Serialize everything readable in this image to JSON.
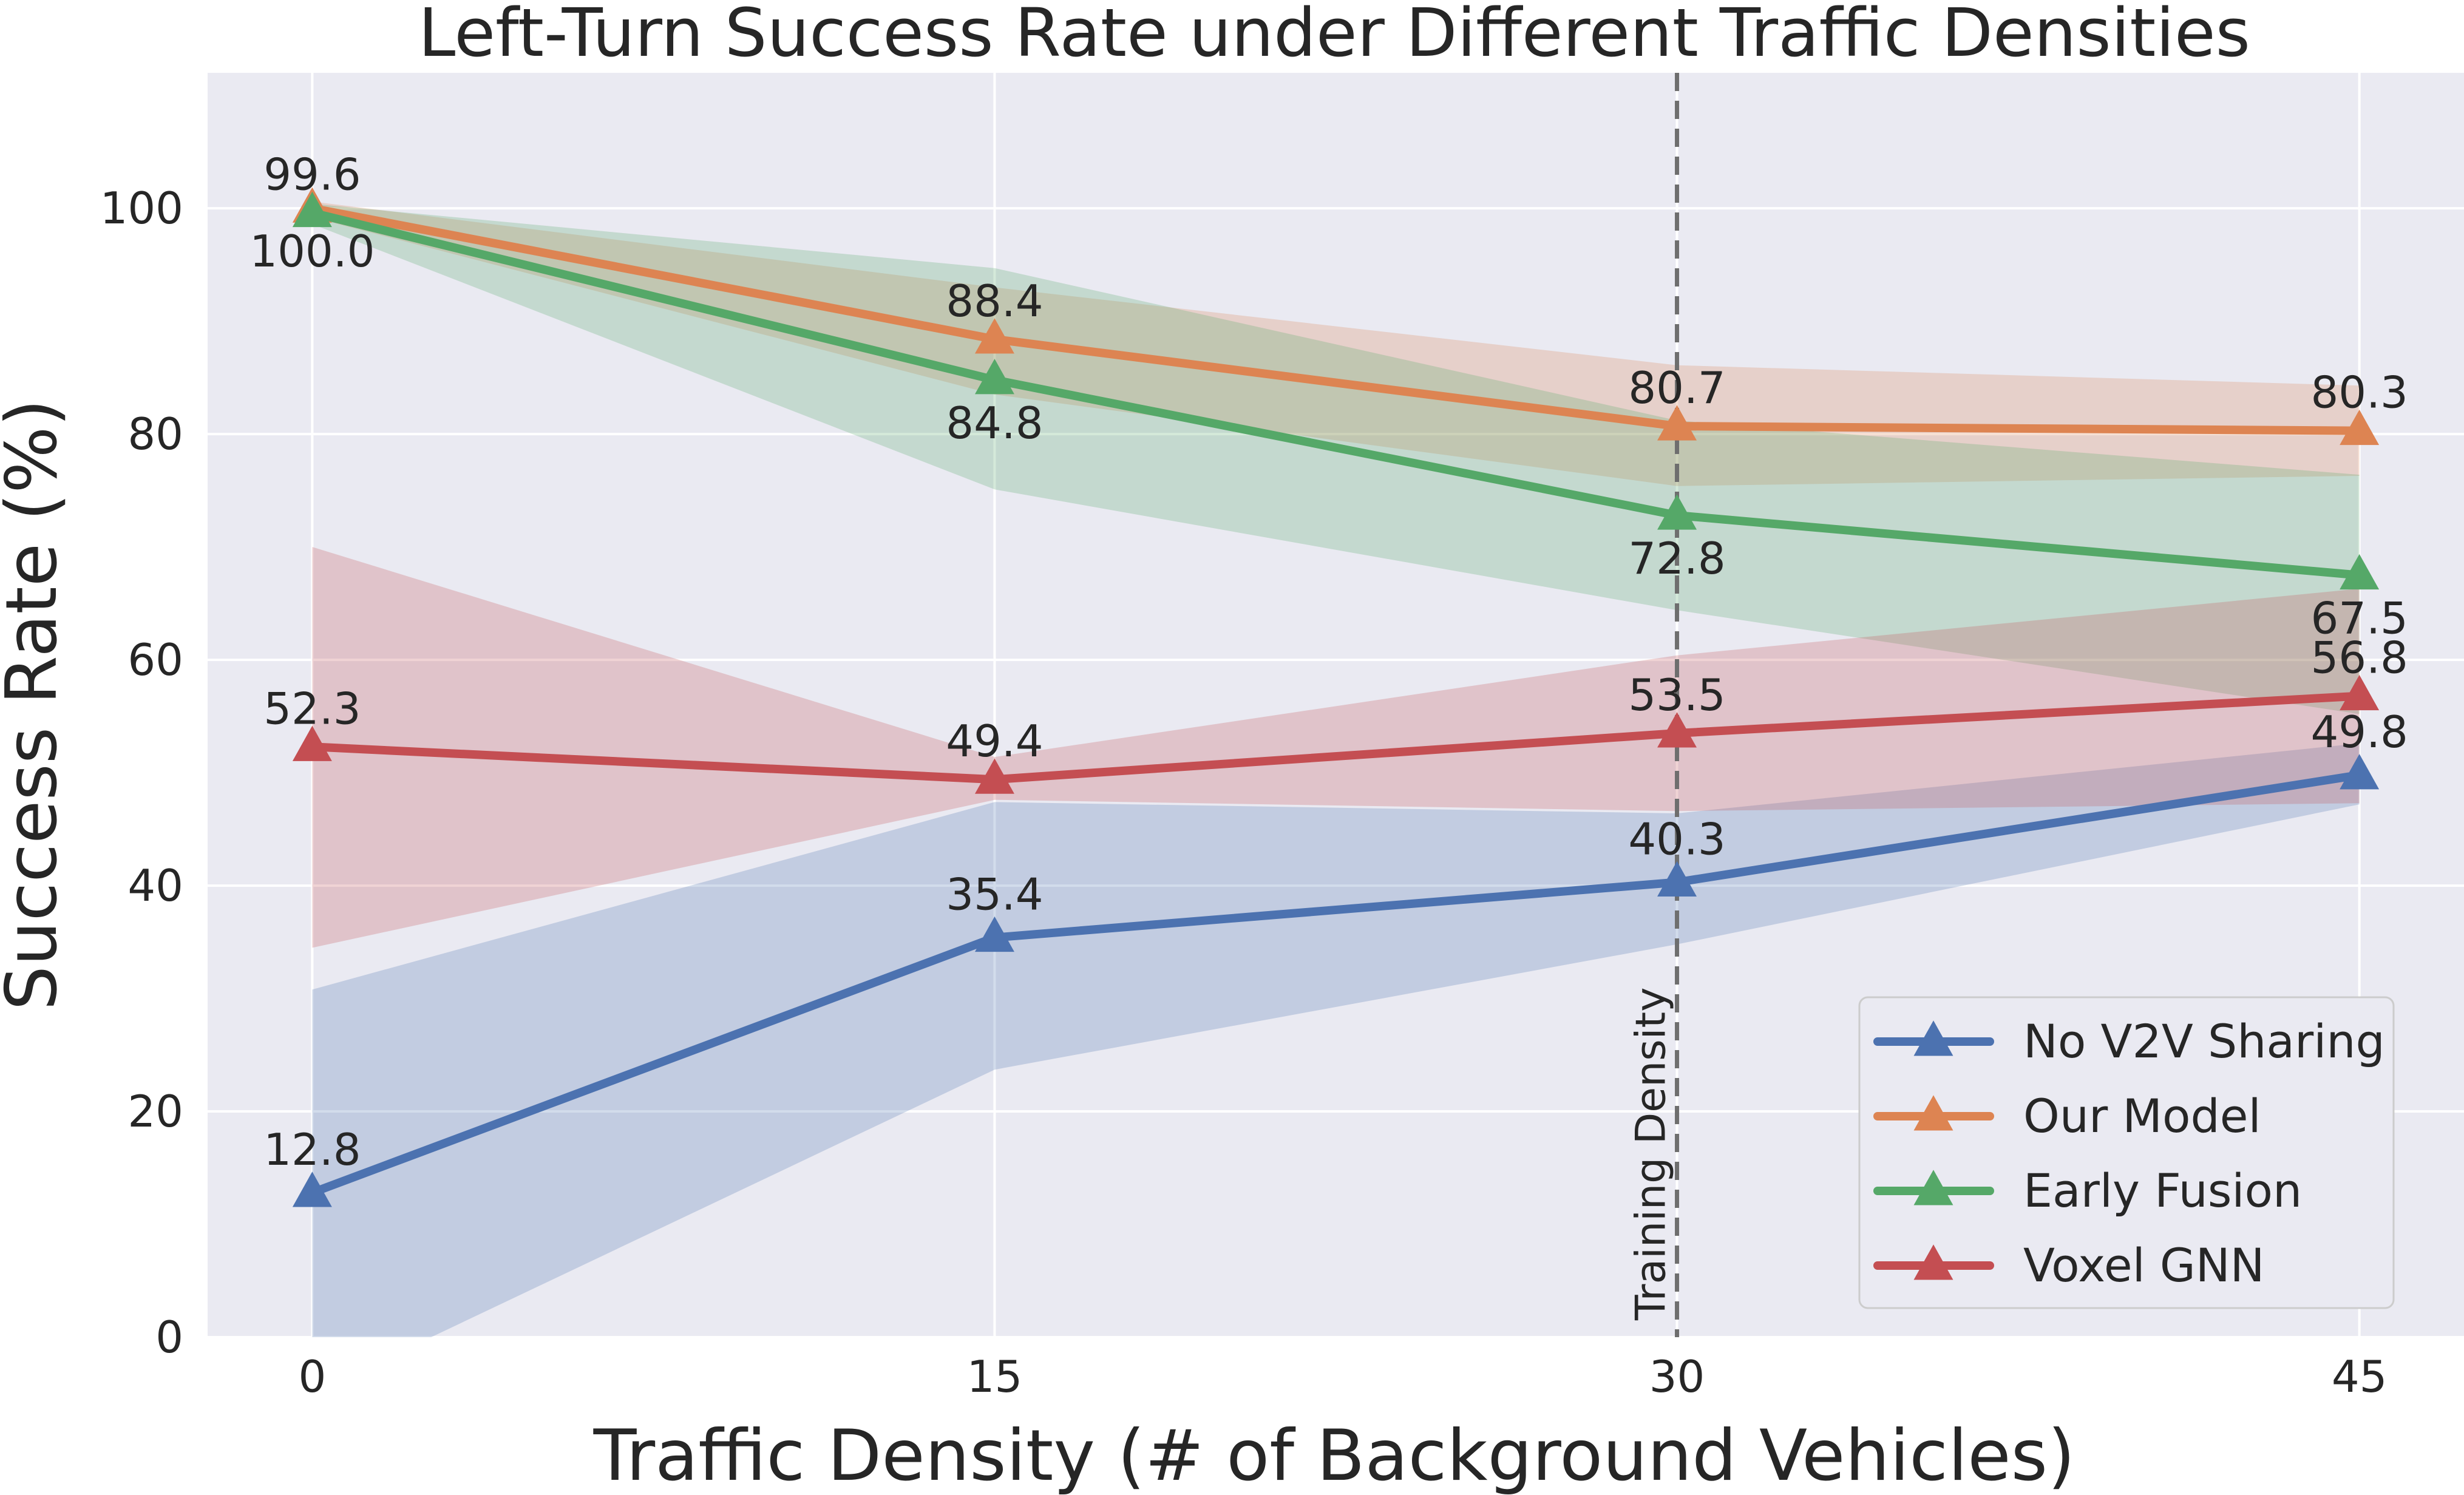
{
  "chart_data": {
    "type": "line",
    "title": "Left-Turn Success Rate under Different Traffic Densities",
    "xlabel": "Traffic Density (# of Background Vehicles)",
    "ylabel": "Success Rate (%)",
    "x": [
      0,
      15,
      30,
      45
    ],
    "x_ticks": [
      "0",
      "15",
      "30",
      "45"
    ],
    "y_ticks": [
      "0",
      "20",
      "40",
      "60",
      "80",
      "100"
    ],
    "xlim": [
      -2.3,
      47.3
    ],
    "ylim": [
      0,
      112
    ],
    "grid": true,
    "legend_position": "lower right",
    "series": [
      {
        "name": "No V2V Sharing",
        "color": "#4c72b0",
        "values": [
          12.8,
          35.4,
          40.3,
          49.8
        ],
        "labels": [
          "12.8",
          "35.4",
          "40.3",
          "49.8"
        ],
        "band_lower": [
          -5,
          23.7,
          34.8,
          47.2
        ],
        "band_upper": [
          30.8,
          47.4,
          46.4,
          52.6
        ]
      },
      {
        "name": "Our Model",
        "color": "#dd8452",
        "values": [
          100.0,
          88.4,
          80.7,
          80.3
        ],
        "labels": [
          "100.0",
          "88.4",
          "80.7",
          "80.3"
        ],
        "band_lower": [
          99.2,
          83.5,
          75.4,
          76.3
        ],
        "band_upper": [
          100.6,
          93.0,
          86.1,
          84.3
        ]
      },
      {
        "name": "Early Fusion",
        "color": "#55a868",
        "values": [
          99.6,
          84.8,
          72.8,
          67.5
        ],
        "labels": [
          "99.6",
          "84.8",
          "72.8",
          "67.5"
        ],
        "band_lower": [
          98.6,
          75.1,
          64.4,
          55.2
        ],
        "band_upper": [
          100.4,
          94.7,
          81.2,
          76.4
        ]
      },
      {
        "name": "Voxel GNN",
        "color": "#c44e52",
        "values": [
          52.3,
          49.4,
          53.5,
          56.8
        ],
        "labels": [
          "52.3",
          "49.4",
          "53.5",
          "56.8"
        ],
        "band_lower": [
          34.5,
          47.6,
          46.6,
          47.3
        ],
        "band_upper": [
          70.0,
          51.4,
          60.4,
          66.3
        ]
      }
    ],
    "annotations": [
      {
        "type": "vline",
        "x": 30,
        "text": "Training Density",
        "style": "dashed",
        "color": "#6e6e6e"
      }
    ]
  }
}
